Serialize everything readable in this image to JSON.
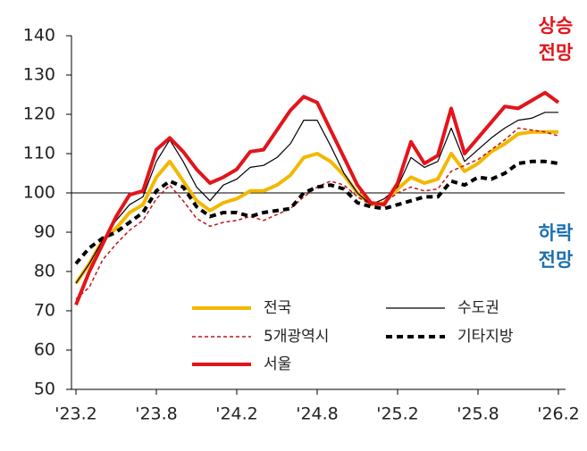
{
  "chart_data": {
    "type": "line",
    "categories": [
      "'23.2",
      null,
      null,
      null,
      null,
      null,
      "'23.8",
      null,
      null,
      null,
      null,
      null,
      "'24.2",
      null,
      null,
      null,
      null,
      null,
      "'24.8",
      null,
      null,
      null,
      null,
      null,
      "'25.2",
      null,
      null,
      null,
      null,
      null,
      "'25.8",
      null,
      null,
      null,
      null,
      null,
      "'26.2"
    ],
    "series": [
      {
        "name": "전국",
        "color": "#f2b800",
        "values": [
          77,
          82,
          88,
          91,
          95,
          97,
          104,
          108,
          103,
          98,
          95.5,
          97.5,
          98.5,
          100.5,
          100.5,
          102,
          104.5,
          109,
          110,
          108,
          104.5,
          100,
          97,
          97.5,
          101,
          104,
          102.5,
          103.5,
          110,
          105.5,
          107.5,
          110.5,
          112.5,
          115,
          115.5,
          115.5,
          115.5
        ]
      },
      {
        "name": "수도권",
        "color": "#000000",
        "values": [
          77,
          82,
          88,
          93,
          97,
          99,
          108,
          113.5,
          108,
          101.5,
          98,
          102,
          103.5,
          106.5,
          107,
          109,
          112.5,
          118.5,
          118.5,
          112,
          105,
          100,
          97,
          98.5,
          101.5,
          109,
          106.5,
          108,
          116.5,
          108,
          111,
          114,
          116.5,
          118.5,
          119,
          120.5,
          120.5
        ]
      },
      {
        "name": "5개광역시",
        "color": "#c0151b",
        "values": [
          73,
          76,
          83,
          87,
          90.5,
          93,
          98.5,
          102,
          98,
          93.5,
          91.5,
          92.5,
          93,
          94,
          93,
          94.5,
          96,
          99,
          101.5,
          103,
          102,
          99,
          97,
          97.5,
          100,
          101.5,
          100.5,
          101,
          105.5,
          107,
          108.5,
          111,
          113.5,
          116.5,
          116,
          115.5,
          114.5
        ]
      },
      {
        "name": "기타지방",
        "color": "#000000",
        "values": [
          82,
          86,
          88.5,
          90,
          92.5,
          95,
          100.5,
          103,
          101.5,
          96.5,
          94,
          95,
          95,
          94,
          95,
          95.5,
          96,
          100,
          101.5,
          102,
          101,
          97.5,
          96.5,
          96,
          97,
          98,
          99,
          99,
          103,
          102,
          104,
          103.5,
          105,
          107.5,
          108,
          108,
          107.5
        ]
      },
      {
        "name": "서울",
        "color": "#e3141b",
        "values": [
          71.5,
          80,
          87,
          94,
          99.5,
          100.5,
          111,
          114,
          110.5,
          106,
          102.5,
          104,
          106,
          110.5,
          111,
          116,
          121,
          124.5,
          123,
          116,
          109,
          102,
          97.5,
          97,
          102.5,
          113,
          107.5,
          109.5,
          121.5,
          110,
          114,
          118,
          122,
          121.5,
          123.5,
          125.5,
          123
        ]
      }
    ],
    "ylim": [
      50,
      140
    ],
    "yticks": [
      50,
      60,
      70,
      80,
      90,
      100,
      110,
      120,
      130,
      140
    ],
    "reference_line": 100,
    "annotations": [
      {
        "lines": [
          "상승",
          "전망"
        ],
        "color": "#e3141b"
      },
      {
        "lines": [
          "하락",
          "전망"
        ],
        "color": "#1a6fb0"
      }
    ]
  }
}
